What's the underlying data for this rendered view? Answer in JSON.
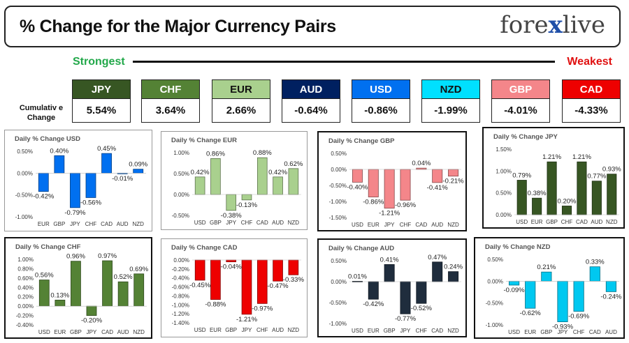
{
  "header": {
    "title": "% Change for the Major Currency Pairs",
    "logo_left": "fore",
    "logo_x": "x",
    "logo_right": "live"
  },
  "strength_bar": {
    "strongest": "Strongest",
    "weakest": "Weakest",
    "cumulative_label": "Cumulativ e Change"
  },
  "cumulative": [
    {
      "currency": "JPY",
      "value": "5.54%",
      "color": "#375623",
      "text": "#ffffff"
    },
    {
      "currency": "CHF",
      "value": "3.64%",
      "color": "#548235",
      "text": "#ffffff"
    },
    {
      "currency": "EUR",
      "value": "2.66%",
      "color": "#a9d08e",
      "text": "#111111"
    },
    {
      "currency": "AUD",
      "value": "-0.64%",
      "color": "#002060",
      "text": "#ffffff"
    },
    {
      "currency": "USD",
      "value": "-0.86%",
      "color": "#0070f0",
      "text": "#ffffff"
    },
    {
      "currency": "NZD",
      "value": "-1.99%",
      "color": "#00e0ff",
      "text": "#111111"
    },
    {
      "currency": "GBP",
      "value": "-4.01%",
      "color": "#f4868a",
      "text": "#ffffff"
    },
    {
      "currency": "CAD",
      "value": "-4.33%",
      "color": "#ee0000",
      "text": "#ffffff"
    }
  ],
  "chart_data": [
    {
      "type": "bar",
      "title": "Daily % Change USD",
      "categories": [
        "EUR",
        "GBP",
        "JPY",
        "CHF",
        "CAD",
        "AUD",
        "NZD"
      ],
      "values": [
        -0.42,
        0.4,
        -0.79,
        -0.56,
        0.45,
        -0.01,
        0.09
      ],
      "labels": [
        "-0.42%",
        "0.40%",
        "-0.79%",
        "-0.56%",
        "0.45%",
        "-0.01%",
        "0.09%"
      ],
      "ylim": [
        -1.0,
        0.5
      ],
      "ticks": [
        0.5,
        0,
        -0.5,
        -1.0
      ],
      "tick_labels": [
        "0.50%",
        "0.00%",
        "-0.50%",
        "-1.00%"
      ],
      "color": "#0070f0"
    },
    {
      "type": "bar",
      "title": "Daily % Change EUR",
      "categories": [
        "USD",
        "GBP",
        "JPY",
        "CHF",
        "CAD",
        "AUD",
        "NZD"
      ],
      "values": [
        0.42,
        0.86,
        -0.38,
        -0.13,
        0.88,
        0.42,
        0.62
      ],
      "labels": [
        "0.42%",
        "0.86%",
        "-0.38%",
        "-0.13%",
        "0.88%",
        "0.42%",
        "0.62%"
      ],
      "ylim": [
        -0.5,
        1.0
      ],
      "ticks": [
        1.0,
        0.5,
        0,
        -0.5
      ],
      "tick_labels": [
        "1.00%",
        "0.50%",
        "0.00%",
        "-0.50%"
      ],
      "color": "#a9d08e"
    },
    {
      "type": "bar",
      "title": "Daily % Change GBP",
      "categories": [
        "USD",
        "EUR",
        "JPY",
        "CHF",
        "CAD",
        "AUD",
        "NZD"
      ],
      "values": [
        -0.4,
        -0.86,
        -1.21,
        -0.96,
        0.04,
        -0.41,
        -0.21
      ],
      "labels": [
        "-0.40%",
        "-0.86%",
        "-1.21%",
        "-0.96%",
        "0.04%",
        "-0.41%",
        "-0.21%"
      ],
      "ylim": [
        -1.5,
        0.5
      ],
      "ticks": [
        0.5,
        0,
        -0.5,
        -1.0,
        -1.5
      ],
      "tick_labels": [
        "0.50%",
        "0.00%",
        "-0.50%",
        "-1.00%",
        "-1.50%"
      ],
      "color": "#f4868a"
    },
    {
      "type": "bar",
      "title": "Daily % Change JPY",
      "categories": [
        "USD",
        "EUR",
        "GBP",
        "CHF",
        "CAD",
        "AUD",
        "NZD"
      ],
      "values": [
        0.79,
        0.38,
        1.21,
        0.2,
        1.21,
        0.77,
        0.93
      ],
      "labels": [
        "0.79%",
        "0.38%",
        "1.21%",
        "0.20%",
        "1.21%",
        "0.77%",
        "0.93%"
      ],
      "ylim": [
        0,
        1.5
      ],
      "ticks": [
        1.5,
        1.0,
        0.5,
        0
      ],
      "tick_labels": [
        "1.50%",
        "1.00%",
        "0.50%",
        "0.00%"
      ],
      "color": "#375623"
    },
    {
      "type": "bar",
      "title": "Daily % Change CHF",
      "categories": [
        "USD",
        "EUR",
        "GBP",
        "JPY",
        "CAD",
        "AUD",
        "NZD"
      ],
      "values": [
        0.56,
        0.13,
        0.96,
        -0.2,
        0.97,
        0.52,
        0.69
      ],
      "labels": [
        "0.56%",
        "0.13%",
        "0.96%",
        "-0.20%",
        "0.97%",
        "0.52%",
        "0.69%"
      ],
      "ylim": [
        -0.4,
        1.0
      ],
      "ticks": [
        1.0,
        0.8,
        0.6,
        0.4,
        0.2,
        0,
        -0.2,
        -0.4
      ],
      "tick_labels": [
        "1.00%",
        "0.80%",
        "0.60%",
        "0.40%",
        "0.20%",
        "0.00%",
        "-0.20%",
        "-0.40%"
      ],
      "color": "#548235"
    },
    {
      "type": "bar",
      "title": "Daily % Change CAD",
      "categories": [
        "USD",
        "EUR",
        "GBP",
        "JPY",
        "CHF",
        "AUD",
        "NZD"
      ],
      "values": [
        -0.45,
        -0.88,
        -0.04,
        -1.21,
        -0.97,
        -0.47,
        -0.33
      ],
      "labels": [
        "-0.45%",
        "-0.88%",
        "-0.04%",
        "-1.21%",
        "-0.97%",
        "-0.47%",
        "-0.33%"
      ],
      "ylim": [
        -1.4,
        0
      ],
      "ticks": [
        0,
        -0.2,
        -0.4,
        -0.6,
        -0.8,
        -1.0,
        -1.2,
        -1.4
      ],
      "tick_labels": [
        "0.00%",
        "-0.20%",
        "-0.40%",
        "-0.60%",
        "-0.80%",
        "-1.00%",
        "-1.20%",
        "-1.40%"
      ],
      "color": "#ee0000"
    },
    {
      "type": "bar",
      "title": "Daily % Change AUD",
      "categories": [
        "USD",
        "EUR",
        "GBP",
        "JPY",
        "CHF",
        "CAD",
        "NZD"
      ],
      "values": [
        0.01,
        -0.42,
        0.41,
        -0.77,
        -0.52,
        0.47,
        0.24
      ],
      "labels": [
        "0.01%",
        "-0.42%",
        "0.41%",
        "-0.77%",
        "-0.52%",
        "0.47%",
        "0.24%"
      ],
      "ylim": [
        -1.0,
        0.5
      ],
      "ticks": [
        0.5,
        0,
        -0.5,
        -1.0
      ],
      "tick_labels": [
        "0.50%",
        "0.00%",
        "-0.50%",
        "-1.00%"
      ],
      "color": "#1f2d3d"
    },
    {
      "type": "bar",
      "title": "Daily % Change NZD",
      "categories": [
        "USD",
        "EUR",
        "GBP",
        "JPY",
        "CHF",
        "CAD",
        "AUD"
      ],
      "values": [
        -0.09,
        -0.62,
        0.21,
        -0.93,
        -0.69,
        0.33,
        -0.24
      ],
      "labels": [
        "-0.09%",
        "-0.62%",
        "0.21%",
        "-0.93%",
        "-0.69%",
        "0.33%",
        "-0.24%"
      ],
      "ylim": [
        -1.0,
        0.5
      ],
      "ticks": [
        0.5,
        0,
        -0.5,
        -1.0
      ],
      "tick_labels": [
        "0.50%",
        "0.00%",
        "-0.50%",
        "-1.00%"
      ],
      "color": "#00c8f0"
    }
  ]
}
